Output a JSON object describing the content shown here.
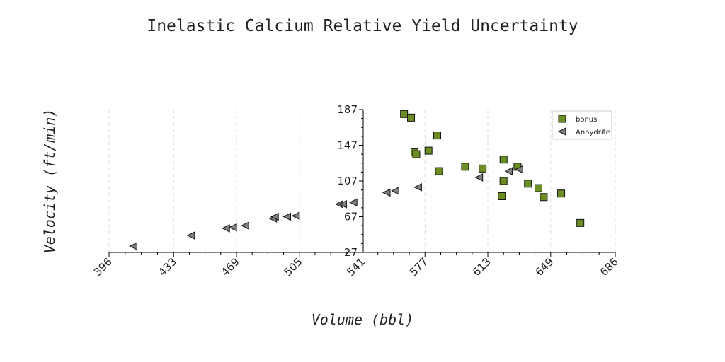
{
  "chart_data": {
    "type": "scatter",
    "title": "Inelastic Calcium Relative Yield Uncertainty",
    "xlabel": "Volume (bbl)",
    "ylabel": "Velocity (ft/min)",
    "xlim": [
      396,
      686
    ],
    "ylim": [
      27,
      187
    ],
    "x_ticks": [
      "396",
      "433",
      "469",
      "505",
      "541",
      "577",
      "613",
      "649",
      "686"
    ],
    "y_ticks": [
      "27",
      "67",
      "107",
      "147",
      "187"
    ],
    "x_tick_values": [
      396,
      433,
      469,
      505,
      541,
      577,
      613,
      649,
      686
    ],
    "y_tick_values": [
      27,
      67,
      107,
      147,
      187
    ],
    "grid": "vertical dashed",
    "legend_position": "top-right",
    "series": [
      {
        "name": "bonus",
        "marker": "square",
        "color": "#6b8e23",
        "points": [
          [
            565,
            182
          ],
          [
            569,
            178
          ],
          [
            571,
            139
          ],
          [
            572,
            137
          ],
          [
            579,
            141
          ],
          [
            584,
            158
          ],
          [
            585,
            118
          ],
          [
            600,
            123
          ],
          [
            610,
            121
          ],
          [
            621,
            90
          ],
          [
            622,
            107
          ],
          [
            622,
            131
          ],
          [
            630,
            123
          ],
          [
            636,
            104
          ],
          [
            642,
            99
          ],
          [
            645,
            89
          ],
          [
            655,
            93
          ],
          [
            666,
            60
          ]
        ]
      },
      {
        "name": "Anhydrite",
        "marker": "triangle-left",
        "color": "#7f7f7f",
        "points": [
          [
            410,
            34
          ],
          [
            443,
            46
          ],
          [
            463,
            54
          ],
          [
            467,
            55
          ],
          [
            474,
            57
          ],
          [
            490,
            65
          ],
          [
            491,
            67
          ],
          [
            498,
            67
          ],
          [
            503,
            68
          ],
          [
            528,
            81
          ],
          [
            530,
            81
          ],
          [
            536,
            83
          ],
          [
            555,
            94
          ],
          [
            560,
            96
          ],
          [
            573,
            100
          ],
          [
            608,
            111
          ],
          [
            625,
            118
          ],
          [
            631,
            120
          ]
        ]
      }
    ]
  }
}
